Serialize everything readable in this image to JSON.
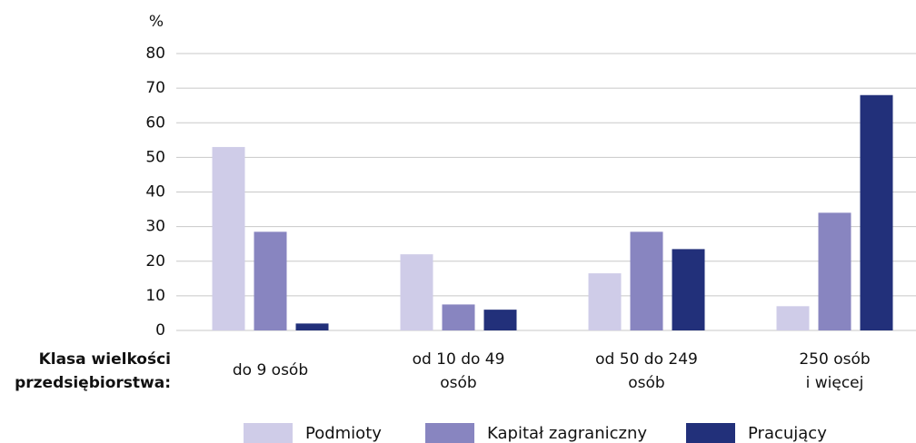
{
  "chart_data": {
    "type": "bar",
    "y_axis_label": "%",
    "x_axis_label": [
      "Klasa wielkości",
      "przedsiębiorstwa:"
    ],
    "categories": [
      [
        "do 9 osób"
      ],
      [
        "od 10 do 49",
        "osób"
      ],
      [
        "od 50 do 249",
        "osób"
      ],
      [
        "250 osób",
        "i więcej"
      ]
    ],
    "series": [
      {
        "name": "Podmioty",
        "color": "#cfcce8",
        "values": [
          53,
          22,
          16.5,
          7
        ]
      },
      {
        "name": "Kapitał zagraniczny",
        "color": "#8885c0",
        "values": [
          28.5,
          7.5,
          28.5,
          34
        ]
      },
      {
        "name": "Pracujący",
        "color": "#22307a",
        "values": [
          2,
          6,
          23.5,
          68
        ]
      }
    ],
    "ylim": [
      0,
      80
    ],
    "yticks": [
      0,
      10,
      20,
      30,
      40,
      50,
      60,
      70,
      80
    ],
    "grid": true,
    "legend": "bottom"
  }
}
